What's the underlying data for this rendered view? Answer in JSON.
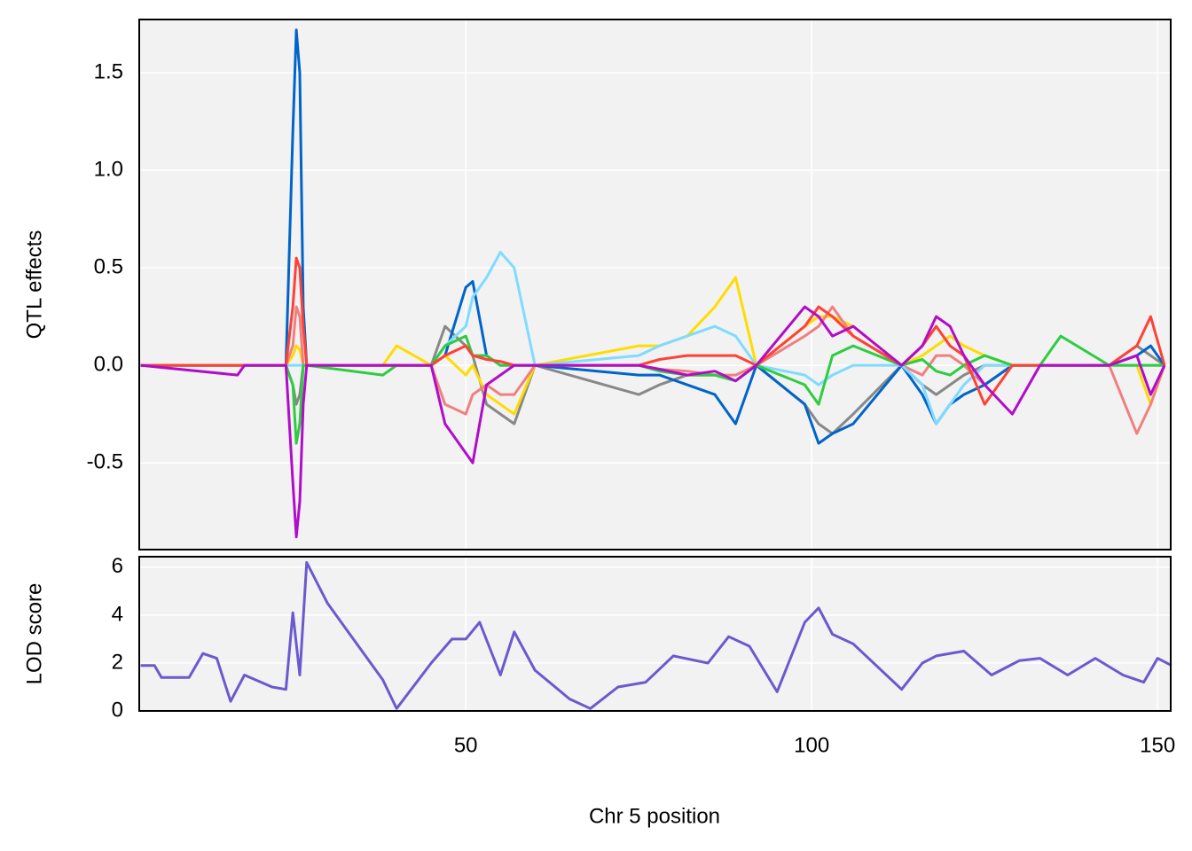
{
  "chart_data": [
    {
      "type": "line",
      "ylabel": "QTL effects",
      "x": [
        3,
        17,
        18,
        24,
        25,
        25.5,
        26,
        26.5,
        27,
        38,
        40,
        45,
        47,
        50,
        51,
        53,
        55,
        57,
        60,
        75,
        78,
        82,
        86,
        89,
        92,
        99,
        101,
        103,
        106,
        113,
        116,
        118,
        120,
        122,
        125,
        129,
        133,
        136,
        143,
        147,
        149,
        151
      ],
      "series": [
        {
          "color": "#888888",
          "values": [
            0,
            0,
            0,
            0,
            -0.1,
            -0.2,
            -0.15,
            0,
            0,
            0,
            0,
            0,
            0.2,
            0.1,
            0.05,
            -0.2,
            -0.25,
            -0.3,
            0,
            -0.15,
            -0.1,
            -0.05,
            -0.05,
            -0.08,
            0,
            -0.2,
            -0.3,
            -0.35,
            -0.25,
            0,
            -0.1,
            -0.15,
            -0.1,
            -0.05,
            0,
            0,
            0,
            0,
            0,
            0.1,
            0.05,
            0
          ]
        },
        {
          "color": "#FFDC00",
          "values": [
            0,
            0,
            0,
            0,
            0.05,
            0.1,
            0.08,
            0,
            0,
            0,
            0.1,
            0,
            0.05,
            -0.05,
            0,
            -0.15,
            -0.2,
            -0.25,
            0,
            0.1,
            0.1,
            0.15,
            0.3,
            0.45,
            0,
            0.2,
            0.25,
            0.25,
            0.2,
            0,
            0.05,
            0.1,
            0.15,
            0.1,
            0.05,
            0,
            0,
            0,
            0,
            0,
            -0.2,
            0
          ]
        },
        {
          "color": "#F08080",
          "values": [
            0,
            0,
            0,
            0,
            0.1,
            0.3,
            0.25,
            0,
            0,
            0,
            0,
            0,
            -0.2,
            -0.25,
            -0.15,
            -0.1,
            -0.15,
            -0.15,
            0,
            0,
            -0.02,
            -0.03,
            -0.05,
            -0.05,
            0,
            0.15,
            0.2,
            0.3,
            0.15,
            0,
            -0.05,
            0.05,
            0.05,
            0,
            -0.1,
            0,
            0,
            0,
            0,
            -0.35,
            -0.2,
            0
          ]
        },
        {
          "color": "#0064C9",
          "values": [
            0,
            0,
            0,
            0,
            1.2,
            1.72,
            1.5,
            0.3,
            0,
            0,
            0,
            0,
            0.05,
            0.4,
            0.43,
            0.05,
            0,
            0,
            0,
            -0.05,
            -0.05,
            -0.1,
            -0.15,
            -0.3,
            0,
            -0.2,
            -0.4,
            -0.35,
            -0.3,
            0,
            -0.15,
            -0.3,
            -0.2,
            -0.15,
            -0.1,
            0,
            0,
            0,
            0,
            0.05,
            0.1,
            0
          ]
        },
        {
          "color": "#7FDBFF",
          "values": [
            0,
            0,
            0,
            0,
            0,
            0,
            0,
            0,
            0,
            0,
            0,
            0,
            0.1,
            0.2,
            0.35,
            0.45,
            0.58,
            0.5,
            0,
            0.05,
            0.1,
            0.15,
            0.2,
            0.15,
            0,
            -0.05,
            -0.1,
            -0.05,
            0,
            0,
            -0.1,
            -0.3,
            -0.2,
            -0.1,
            0,
            0,
            0,
            0,
            0,
            0,
            0,
            0
          ]
        },
        {
          "color": "#2ECC40",
          "values": [
            0,
            0,
            0,
            0,
            -0.1,
            -0.4,
            -0.3,
            0,
            0,
            -0.05,
            0,
            0,
            0.1,
            0.15,
            0.05,
            0.05,
            0,
            0,
            0,
            0,
            -0.03,
            -0.05,
            -0.05,
            -0.08,
            0,
            -0.1,
            -0.2,
            0.05,
            0.1,
            0,
            0.03,
            -0.03,
            -0.05,
            0,
            0.05,
            0,
            0,
            0.15,
            0,
            0,
            0,
            0
          ]
        },
        {
          "color": "#FF4136",
          "values": [
            0,
            0,
            0,
            0,
            0.3,
            0.55,
            0.5,
            0.2,
            0,
            0,
            0,
            0,
            0.05,
            0.1,
            0.05,
            0.03,
            0.02,
            0,
            0,
            0,
            0.03,
            0.05,
            0.05,
            0.05,
            0,
            0.2,
            0.3,
            0.25,
            0.15,
            0,
            0.1,
            0.2,
            0.1,
            0.05,
            -0.2,
            0,
            0,
            0,
            0,
            0.1,
            0.25,
            0
          ]
        },
        {
          "color": "#B10DC9",
          "values": [
            0,
            -0.05,
            0,
            0,
            -0.6,
            -0.88,
            -0.7,
            -0.2,
            0,
            0,
            0,
            0,
            -0.3,
            -0.45,
            -0.5,
            -0.1,
            -0.05,
            0,
            0,
            0,
            -0.02,
            -0.05,
            -0.03,
            -0.08,
            0,
            0.3,
            0.25,
            0.15,
            0.2,
            0,
            0.1,
            0.25,
            0.2,
            0.05,
            -0.1,
            -0.25,
            0,
            0,
            0,
            0.05,
            -0.15,
            0
          ]
        }
      ],
      "xlim": [
        2.8,
        151.9
      ],
      "ylim": [
        -0.945,
        1.773
      ],
      "yticks": [
        -0.5,
        {
          "value": 0,
          "label": "0.0"
        },
        0.5,
        {
          "value": 1,
          "label": "1.0"
        },
        1.5
      ],
      "grid": true
    },
    {
      "type": "line",
      "ylabel": "LOD score",
      "xlabel": "Chr 5 position",
      "x": [
        3,
        5,
        6,
        10,
        12,
        14,
        16,
        18,
        22,
        24,
        25,
        26,
        27,
        30,
        35,
        38,
        40,
        45,
        48,
        50,
        52,
        55,
        57,
        60,
        65,
        68,
        72,
        76,
        80,
        85,
        88,
        91,
        95,
        99,
        101,
        103,
        106,
        113,
        116,
        118,
        122,
        126,
        130,
        133,
        137,
        141,
        145,
        148,
        150,
        152
      ],
      "series": [
        {
          "color": "#6A5ACD",
          "values": [
            1.9,
            1.9,
            1.4,
            1.4,
            2.4,
            2.2,
            0.4,
            1.5,
            1,
            0.9,
            4.1,
            1.5,
            6.2,
            4.5,
            2.5,
            1.3,
            0.1,
            2.0,
            3.0,
            3.0,
            3.7,
            1.5,
            3.3,
            1.7,
            0.5,
            0.1,
            1.0,
            1.2,
            2.3,
            2.0,
            3.1,
            2.7,
            0.8,
            3.7,
            4.3,
            3.2,
            2.8,
            0.9,
            2.0,
            2.3,
            2.5,
            1.5,
            2.1,
            2.2,
            1.5,
            2.2,
            1.5,
            1.2,
            2.2,
            1.9
          ]
        }
      ],
      "xlim": [
        2.8,
        151.9
      ],
      "ylim": [
        0,
        6.44
      ],
      "yticks": [
        0,
        2,
        4,
        6
      ],
      "xticks": [
        50,
        100,
        150
      ],
      "grid": true
    }
  ]
}
